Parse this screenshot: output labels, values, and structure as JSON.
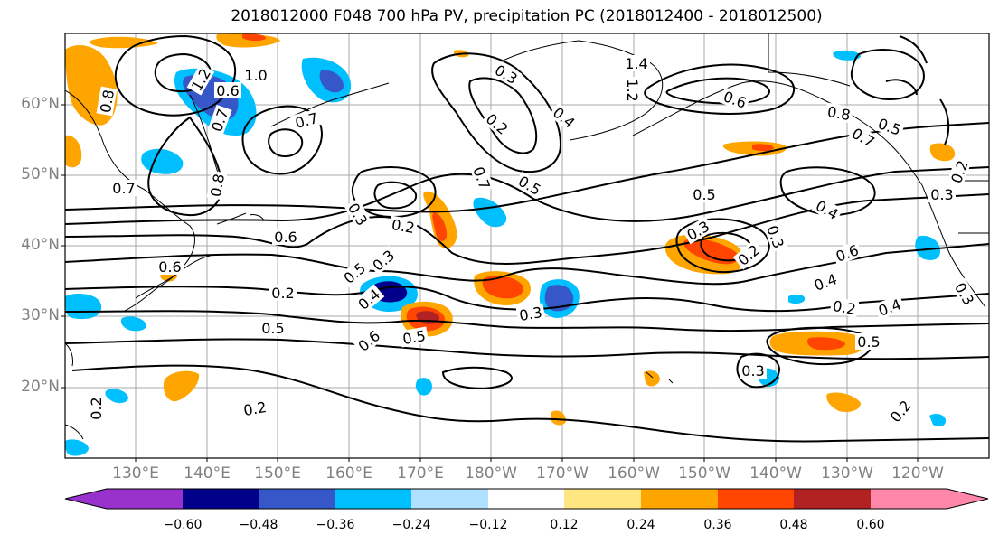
{
  "title": "2018012000 F048 700 hPa PV, precipitation PC (2018012400 - 2018012500)",
  "latitude_labels": [
    "60°N",
    "50°N",
    "40°N",
    "30°N",
    "20°N"
  ],
  "longitude_labels": [
    "130°E",
    "140°E",
    "150°E",
    "160°E",
    "170°E",
    "180°W",
    "170°W",
    "160°W",
    "150°W",
    "140°W",
    "130°W",
    "120°W"
  ],
  "colorbar": {
    "tick_labels": [
      "−0.60",
      "−0.48",
      "−0.36",
      "−0.24",
      "−0.12",
      "0.12",
      "0.24",
      "0.36",
      "0.48",
      "0.60"
    ],
    "colors": [
      "#9932CC",
      "#00008B",
      "#3557C8",
      "#00BFFF",
      "#B0E0FF",
      "#FFFFFF",
      "#FFE680",
      "#FFA500",
      "#FF4500",
      "#B22222",
      "#FF88AA"
    ]
  },
  "contour_labels": [
    {
      "text": "1.0"
    },
    {
      "text": "1.2"
    },
    {
      "text": "0.7"
    },
    {
      "text": "0.8"
    },
    {
      "text": "0.7"
    },
    {
      "text": "0.7"
    },
    {
      "text": "0.8"
    },
    {
      "text": "0.6"
    },
    {
      "text": "0.3"
    },
    {
      "text": "0.2"
    },
    {
      "text": "0.6"
    },
    {
      "text": "0.7"
    },
    {
      "text": "0.5"
    },
    {
      "text": "0.3"
    },
    {
      "text": "0.2"
    },
    {
      "text": "0.4"
    },
    {
      "text": "1.4"
    },
    {
      "text": "1.2"
    },
    {
      "text": "0.6"
    },
    {
      "text": "0.8"
    },
    {
      "text": "0.7"
    },
    {
      "text": "0.5"
    },
    {
      "text": "0.4"
    },
    {
      "text": "0.6"
    },
    {
      "text": "0.5"
    },
    {
      "text": "0.3"
    },
    {
      "text": "0.2"
    },
    {
      "text": "0.3"
    },
    {
      "text": "0.2"
    },
    {
      "text": "0.4"
    },
    {
      "text": "0.5"
    },
    {
      "text": "0.3"
    },
    {
      "text": "0.2"
    },
    {
      "text": "0.4"
    },
    {
      "text": "0.5"
    },
    {
      "text": "0.2"
    },
    {
      "text": "0.5"
    },
    {
      "text": "0.4"
    },
    {
      "text": "0.6"
    },
    {
      "text": "0.3"
    },
    {
      "text": "0.5"
    },
    {
      "text": "0.6"
    },
    {
      "text": "0.3"
    },
    {
      "text": "0.2"
    },
    {
      "text": "0.2"
    },
    {
      "text": "0.3"
    },
    {
      "text": "0.2"
    },
    {
      "text": "0.3"
    }
  ]
}
